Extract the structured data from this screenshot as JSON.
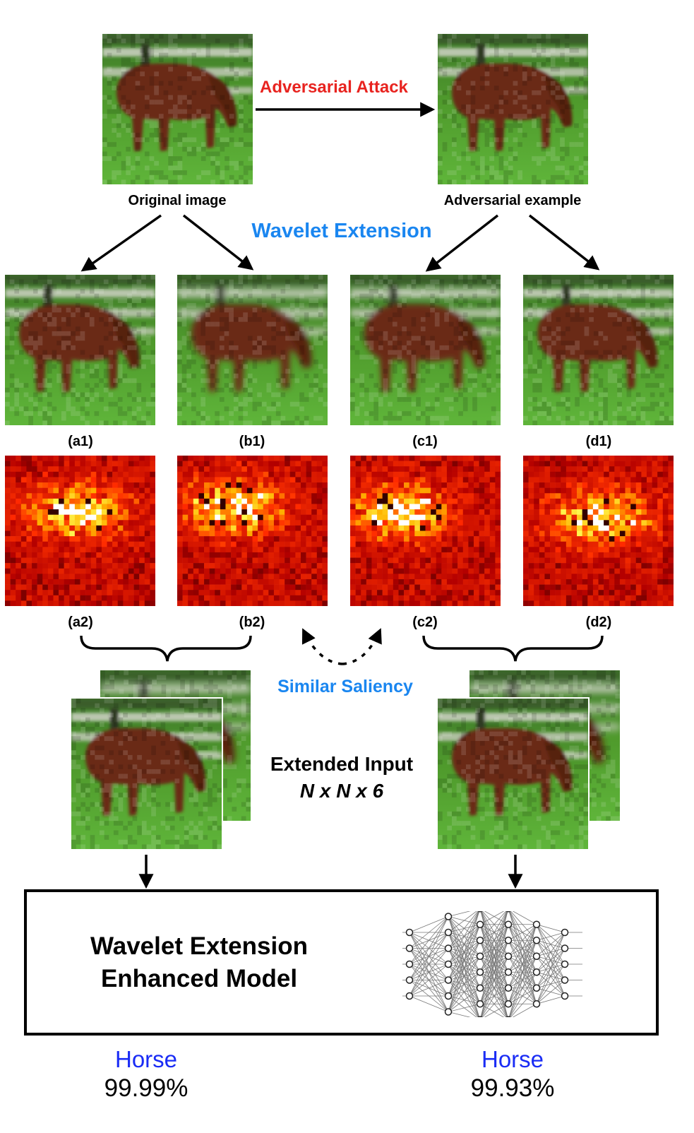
{
  "attack_label": "Adversarial Attack",
  "original_label": "Original image",
  "adversarial_label": "Adversarial example",
  "wavelet_label": "Wavelet Extension",
  "panel_labels": [
    "(a1)",
    "(b1)",
    "(c1)",
    "(d1)",
    "(a2)",
    "(b2)",
    "(c2)",
    "(d2)"
  ],
  "similar_saliency": "Similar Saliency",
  "extended_input_line1": "Extended Input",
  "extended_input_line2": "N x N x 6",
  "model_line1": "Wavelet Extension",
  "model_line2": "Enhanced Model",
  "results": [
    {
      "label": "Horse",
      "value": "99.99%"
    },
    {
      "label": "Horse",
      "value": "99.93%"
    }
  ],
  "colors": {
    "attack": "#e8231f",
    "wavelet": "#1a86f0",
    "result_label": "#1a2cf5",
    "grass": "#4f9a2c",
    "horse": "#6b2a16"
  },
  "icons": {
    "network": "neural-network-icon"
  }
}
